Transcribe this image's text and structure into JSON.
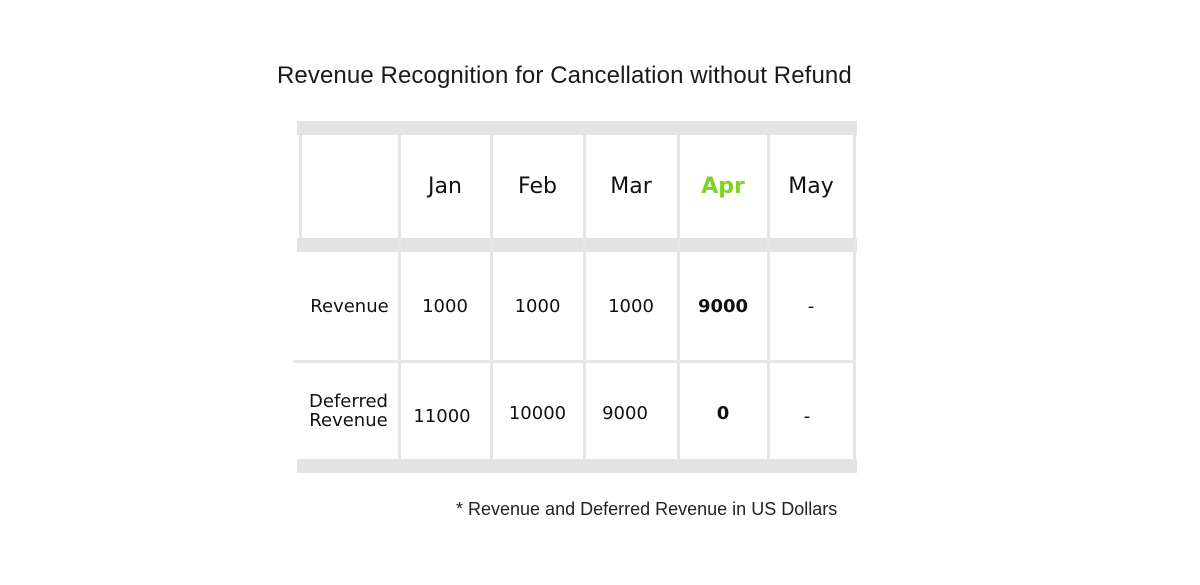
{
  "title": "Revenue Recognition for Cancellation without Refund",
  "table": {
    "header_corner": "",
    "months": [
      "Jan",
      "Feb",
      "Mar",
      "Apr",
      "May"
    ],
    "highlight_month": "Apr",
    "highlight_color": "#7ed321",
    "rows": [
      {
        "label": "Revenue",
        "values": [
          "1000",
          "1000",
          "1000",
          "9000",
          "-"
        ]
      },
      {
        "label": "Deferred Revenue",
        "label_lines": [
          "Deferred",
          "Revenue"
        ],
        "values": [
          "11000",
          "10000",
          "9000",
          "0",
          "-"
        ]
      }
    ],
    "bold_column": "Apr"
  },
  "footnote": "* Revenue and Deferred Revenue in US Dollars"
}
